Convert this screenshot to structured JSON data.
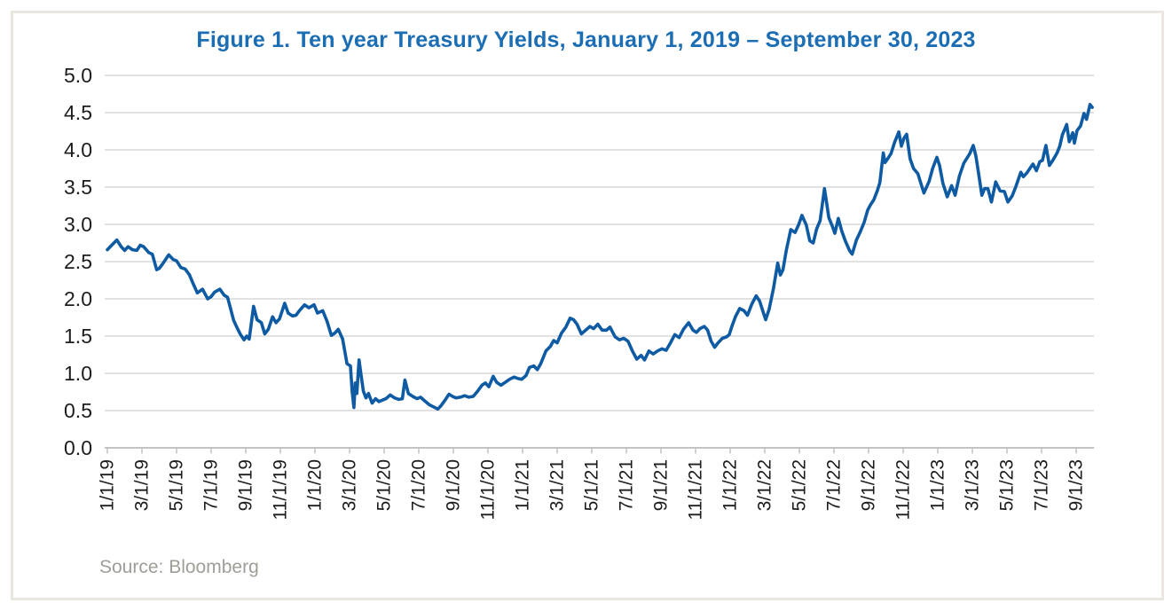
{
  "chart_data": {
    "type": "line",
    "title": "Figure 1. Ten year Treasury Yields, January 1, 2019 – September 30, 2023",
    "source": "Source: Bloomberg",
    "xlabel": "",
    "ylabel": "",
    "x_unit": "months since 1/1/2019",
    "xlim": [
      0,
      57
    ],
    "ylim": [
      0,
      5
    ],
    "grid": "horizontal",
    "legend": "none",
    "colors": {
      "title": "#1b6db4",
      "line": "#0f5ba3",
      "grid": "#d9d9d9",
      "axis": "#c3c3c0",
      "tick_label": "#1c1c1a",
      "source": "#9e9e97",
      "frame_border": "#e9e7e0"
    },
    "y_ticks": {
      "values": [
        0,
        0.5,
        1.0,
        1.5,
        2.0,
        2.5,
        3.0,
        3.5,
        4.0,
        4.5,
        5.0
      ],
      "labels": [
        "0.0",
        "0.5",
        "1.0",
        "1.5",
        "2.0",
        "2.5",
        "3.0",
        "3.5",
        "4.0",
        "4.5",
        "5.0"
      ]
    },
    "x_ticks": {
      "months": [
        0,
        2,
        4,
        6,
        8,
        10,
        12,
        14,
        16,
        18,
        20,
        22,
        24,
        26,
        28,
        30,
        32,
        34,
        36,
        38,
        40,
        42,
        44,
        46,
        48,
        50,
        52,
        54,
        56
      ],
      "labels": [
        "1/1/19",
        "3/1/19",
        "5/1/19",
        "7/1/19",
        "9/1/19",
        "11/1/19",
        "1/1/20",
        "3/1/20",
        "5/1/20",
        "7/1/20",
        "9/1/20",
        "11/1/20",
        "1/1/21",
        "3/1/21",
        "5/1/21",
        "7/1/21",
        "9/1/21",
        "11/1/21",
        "1/1/22",
        "3/1/22",
        "5/1/22",
        "7/1/22",
        "9/1/22",
        "11/1/22",
        "1/1/23",
        "3/1/23",
        "5/1/23",
        "7/1/23",
        "9/1/23"
      ]
    },
    "series": [
      {
        "name": "10-year Treasury yield (%)",
        "color": "#0f5ba3",
        "points": [
          [
            0,
            2.66
          ],
          [
            0.25,
            2.72
          ],
          [
            0.55,
            2.79
          ],
          [
            0.8,
            2.7
          ],
          [
            1.0,
            2.65
          ],
          [
            1.2,
            2.7
          ],
          [
            1.45,
            2.66
          ],
          [
            1.7,
            2.65
          ],
          [
            1.9,
            2.72
          ],
          [
            2.1,
            2.7
          ],
          [
            2.4,
            2.62
          ],
          [
            2.6,
            2.6
          ],
          [
            2.85,
            2.39
          ],
          [
            3.0,
            2.41
          ],
          [
            3.2,
            2.47
          ],
          [
            3.55,
            2.59
          ],
          [
            3.8,
            2.53
          ],
          [
            4.0,
            2.51
          ],
          [
            4.25,
            2.42
          ],
          [
            4.5,
            2.4
          ],
          [
            4.75,
            2.32
          ],
          [
            4.95,
            2.21
          ],
          [
            5.2,
            2.08
          ],
          [
            5.5,
            2.13
          ],
          [
            5.8,
            2.0
          ],
          [
            6.0,
            2.03
          ],
          [
            6.2,
            2.09
          ],
          [
            6.5,
            2.13
          ],
          [
            6.75,
            2.05
          ],
          [
            6.95,
            2.02
          ],
          [
            7.1,
            1.89
          ],
          [
            7.3,
            1.71
          ],
          [
            7.5,
            1.61
          ],
          [
            7.7,
            1.52
          ],
          [
            7.9,
            1.45
          ],
          [
            8.05,
            1.5
          ],
          [
            8.2,
            1.46
          ],
          [
            8.45,
            1.9
          ],
          [
            8.65,
            1.72
          ],
          [
            8.9,
            1.68
          ],
          [
            9.1,
            1.53
          ],
          [
            9.3,
            1.59
          ],
          [
            9.55,
            1.76
          ],
          [
            9.75,
            1.68
          ],
          [
            9.95,
            1.73
          ],
          [
            10.25,
            1.94
          ],
          [
            10.45,
            1.81
          ],
          [
            10.7,
            1.77
          ],
          [
            10.9,
            1.78
          ],
          [
            11.1,
            1.84
          ],
          [
            11.4,
            1.92
          ],
          [
            11.65,
            1.88
          ],
          [
            11.95,
            1.92
          ],
          [
            12.15,
            1.81
          ],
          [
            12.45,
            1.84
          ],
          [
            12.7,
            1.7
          ],
          [
            12.95,
            1.51
          ],
          [
            13.15,
            1.54
          ],
          [
            13.35,
            1.59
          ],
          [
            13.6,
            1.46
          ],
          [
            13.85,
            1.13
          ],
          [
            14.05,
            1.1
          ],
          [
            14.15,
            0.76
          ],
          [
            14.25,
            0.54
          ],
          [
            14.33,
            0.87
          ],
          [
            14.42,
            0.73
          ],
          [
            14.55,
            1.18
          ],
          [
            14.68,
            0.95
          ],
          [
            14.8,
            0.76
          ],
          [
            14.95,
            0.67
          ],
          [
            15.1,
            0.73
          ],
          [
            15.3,
            0.6
          ],
          [
            15.5,
            0.66
          ],
          [
            15.7,
            0.62
          ],
          [
            15.9,
            0.64
          ],
          [
            16.1,
            0.66
          ],
          [
            16.35,
            0.71
          ],
          [
            16.6,
            0.67
          ],
          [
            16.85,
            0.65
          ],
          [
            17.05,
            0.66
          ],
          [
            17.2,
            0.91
          ],
          [
            17.4,
            0.73
          ],
          [
            17.65,
            0.69
          ],
          [
            17.9,
            0.66
          ],
          [
            18.1,
            0.68
          ],
          [
            18.35,
            0.63
          ],
          [
            18.6,
            0.58
          ],
          [
            18.85,
            0.55
          ],
          [
            19.1,
            0.52
          ],
          [
            19.3,
            0.57
          ],
          [
            19.55,
            0.65
          ],
          [
            19.75,
            0.72
          ],
          [
            19.95,
            0.69
          ],
          [
            20.15,
            0.67
          ],
          [
            20.4,
            0.68
          ],
          [
            20.65,
            0.7
          ],
          [
            20.9,
            0.68
          ],
          [
            21.15,
            0.69
          ],
          [
            21.4,
            0.76
          ],
          [
            21.65,
            0.84
          ],
          [
            21.85,
            0.87
          ],
          [
            22.05,
            0.82
          ],
          [
            22.3,
            0.96
          ],
          [
            22.5,
            0.88
          ],
          [
            22.75,
            0.84
          ],
          [
            23.0,
            0.88
          ],
          [
            23.25,
            0.92
          ],
          [
            23.5,
            0.95
          ],
          [
            23.75,
            0.93
          ],
          [
            23.95,
            0.92
          ],
          [
            24.2,
            0.97
          ],
          [
            24.4,
            1.08
          ],
          [
            24.65,
            1.1
          ],
          [
            24.85,
            1.05
          ],
          [
            25.05,
            1.13
          ],
          [
            25.35,
            1.3
          ],
          [
            25.6,
            1.36
          ],
          [
            25.8,
            1.44
          ],
          [
            26.0,
            1.41
          ],
          [
            26.25,
            1.54
          ],
          [
            26.5,
            1.62
          ],
          [
            26.75,
            1.74
          ],
          [
            26.95,
            1.72
          ],
          [
            27.15,
            1.66
          ],
          [
            27.4,
            1.53
          ],
          [
            27.65,
            1.58
          ],
          [
            27.9,
            1.63
          ],
          [
            28.1,
            1.6
          ],
          [
            28.35,
            1.66
          ],
          [
            28.6,
            1.58
          ],
          [
            28.85,
            1.58
          ],
          [
            29.05,
            1.62
          ],
          [
            29.35,
            1.49
          ],
          [
            29.6,
            1.45
          ],
          [
            29.85,
            1.47
          ],
          [
            30.1,
            1.43
          ],
          [
            30.35,
            1.3
          ],
          [
            30.6,
            1.19
          ],
          [
            30.85,
            1.24
          ],
          [
            31.05,
            1.18
          ],
          [
            31.3,
            1.3
          ],
          [
            31.55,
            1.26
          ],
          [
            31.8,
            1.3
          ],
          [
            32.05,
            1.33
          ],
          [
            32.3,
            1.31
          ],
          [
            32.55,
            1.41
          ],
          [
            32.8,
            1.52
          ],
          [
            33.05,
            1.48
          ],
          [
            33.3,
            1.59
          ],
          [
            33.6,
            1.68
          ],
          [
            33.85,
            1.58
          ],
          [
            34.05,
            1.55
          ],
          [
            34.25,
            1.6
          ],
          [
            34.5,
            1.63
          ],
          [
            34.7,
            1.58
          ],
          [
            34.9,
            1.43
          ],
          [
            35.1,
            1.35
          ],
          [
            35.3,
            1.41
          ],
          [
            35.55,
            1.47
          ],
          [
            35.8,
            1.49
          ],
          [
            35.95,
            1.52
          ],
          [
            36.1,
            1.63
          ],
          [
            36.3,
            1.76
          ],
          [
            36.55,
            1.87
          ],
          [
            36.8,
            1.84
          ],
          [
            37.0,
            1.78
          ],
          [
            37.25,
            1.93
          ],
          [
            37.5,
            2.04
          ],
          [
            37.7,
            1.97
          ],
          [
            37.9,
            1.83
          ],
          [
            38.05,
            1.72
          ],
          [
            38.25,
            1.86
          ],
          [
            38.5,
            2.14
          ],
          [
            38.75,
            2.48
          ],
          [
            38.9,
            2.32
          ],
          [
            39.05,
            2.39
          ],
          [
            39.25,
            2.66
          ],
          [
            39.5,
            2.93
          ],
          [
            39.75,
            2.89
          ],
          [
            39.95,
            2.99
          ],
          [
            40.15,
            3.12
          ],
          [
            40.4,
            2.99
          ],
          [
            40.6,
            2.78
          ],
          [
            40.8,
            2.75
          ],
          [
            41.0,
            2.94
          ],
          [
            41.2,
            3.05
          ],
          [
            41.45,
            3.48
          ],
          [
            41.7,
            3.09
          ],
          [
            41.9,
            2.98
          ],
          [
            42.05,
            2.88
          ],
          [
            42.25,
            3.08
          ],
          [
            42.45,
            2.91
          ],
          [
            42.65,
            2.78
          ],
          [
            42.9,
            2.65
          ],
          [
            43.05,
            2.6
          ],
          [
            43.3,
            2.79
          ],
          [
            43.5,
            2.89
          ],
          [
            43.75,
            3.03
          ],
          [
            43.95,
            3.19
          ],
          [
            44.1,
            3.26
          ],
          [
            44.3,
            3.33
          ],
          [
            44.5,
            3.45
          ],
          [
            44.65,
            3.56
          ],
          [
            44.85,
            3.96
          ],
          [
            44.95,
            3.83
          ],
          [
            45.1,
            3.88
          ],
          [
            45.3,
            3.95
          ],
          [
            45.5,
            4.1
          ],
          [
            45.75,
            4.24
          ],
          [
            45.9,
            4.05
          ],
          [
            46.05,
            4.16
          ],
          [
            46.2,
            4.21
          ],
          [
            46.4,
            3.88
          ],
          [
            46.6,
            3.75
          ],
          [
            46.85,
            3.68
          ],
          [
            47.05,
            3.53
          ],
          [
            47.2,
            3.42
          ],
          [
            47.5,
            3.58
          ],
          [
            47.7,
            3.75
          ],
          [
            47.95,
            3.9
          ],
          [
            48.1,
            3.79
          ],
          [
            48.3,
            3.55
          ],
          [
            48.55,
            3.37
          ],
          [
            48.8,
            3.52
          ],
          [
            49.0,
            3.39
          ],
          [
            49.25,
            3.65
          ],
          [
            49.5,
            3.82
          ],
          [
            49.85,
            3.95
          ],
          [
            50.05,
            4.06
          ],
          [
            50.2,
            3.92
          ],
          [
            50.35,
            3.7
          ],
          [
            50.55,
            3.39
          ],
          [
            50.7,
            3.48
          ],
          [
            50.9,
            3.48
          ],
          [
            51.1,
            3.3
          ],
          [
            51.35,
            3.57
          ],
          [
            51.6,
            3.45
          ],
          [
            51.85,
            3.44
          ],
          [
            52.05,
            3.3
          ],
          [
            52.3,
            3.38
          ],
          [
            52.5,
            3.5
          ],
          [
            52.8,
            3.7
          ],
          [
            52.95,
            3.64
          ],
          [
            53.15,
            3.69
          ],
          [
            53.35,
            3.76
          ],
          [
            53.5,
            3.81
          ],
          [
            53.7,
            3.72
          ],
          [
            53.9,
            3.84
          ],
          [
            54.05,
            3.86
          ],
          [
            54.25,
            4.06
          ],
          [
            54.45,
            3.79
          ],
          [
            54.65,
            3.86
          ],
          [
            54.9,
            3.96
          ],
          [
            55.05,
            4.05
          ],
          [
            55.2,
            4.2
          ],
          [
            55.45,
            4.34
          ],
          [
            55.6,
            4.11
          ],
          [
            55.8,
            4.23
          ],
          [
            55.9,
            4.09
          ],
          [
            56.05,
            4.26
          ],
          [
            56.25,
            4.32
          ],
          [
            56.45,
            4.49
          ],
          [
            56.6,
            4.41
          ],
          [
            56.8,
            4.61
          ],
          [
            56.93,
            4.57
          ]
        ]
      }
    ]
  }
}
